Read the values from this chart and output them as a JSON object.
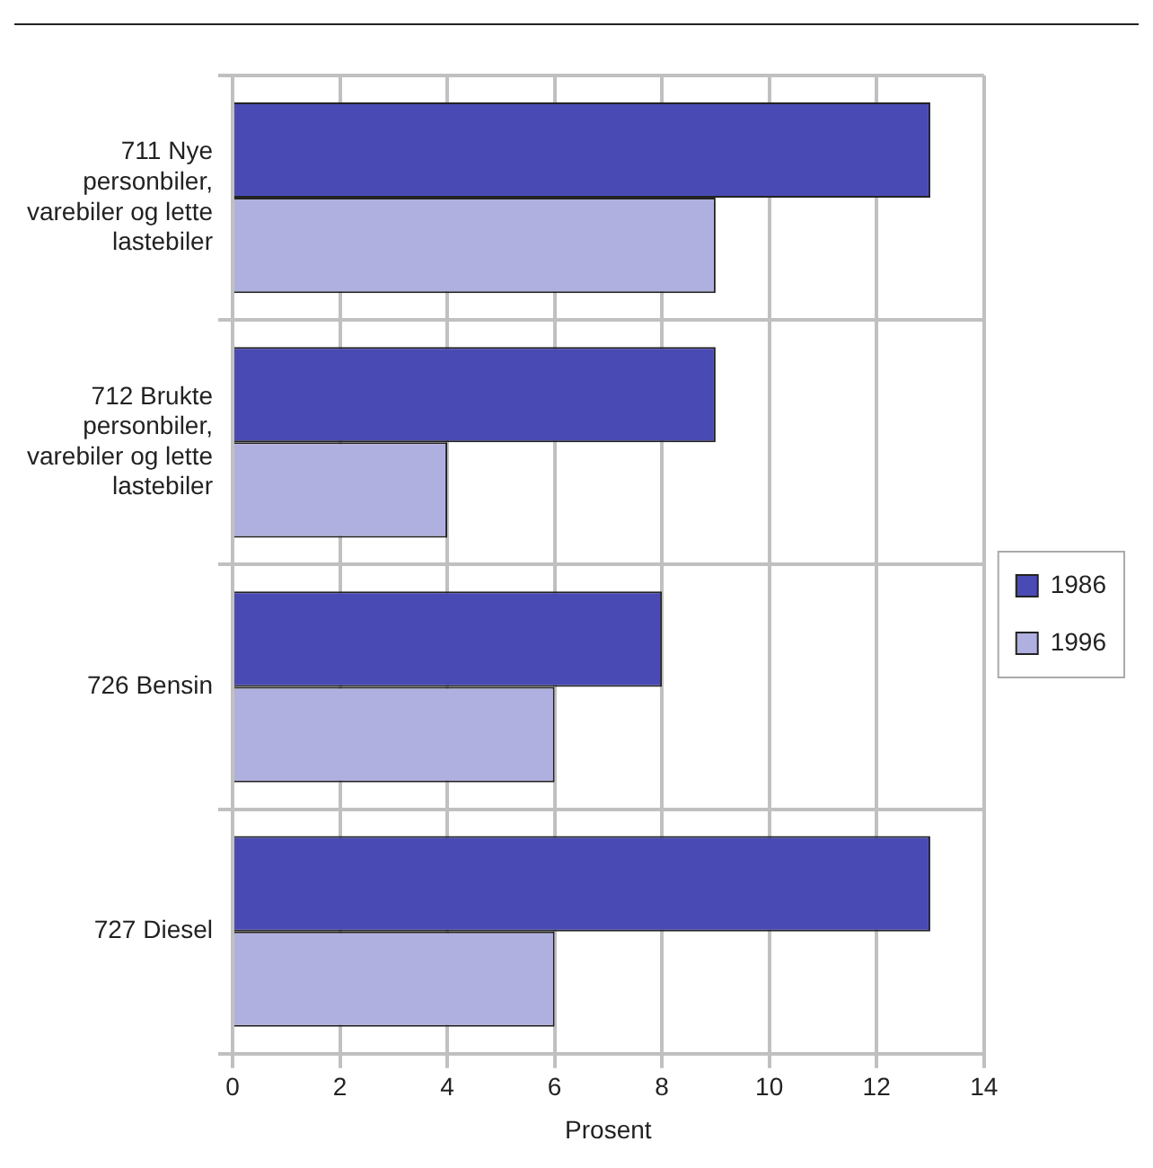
{
  "chart_data": {
    "type": "bar",
    "orientation": "horizontal",
    "xlabel": "Prosent",
    "categories": [
      "711 Nye personbiler, varebiler og lette lastebiler",
      "712 Brukte personbiler, varebiler og lette lastebiler",
      "726 Bensin",
      "727 Diesel"
    ],
    "series": [
      {
        "name": "1986",
        "color": "#4a4ab4",
        "values": [
          13,
          9,
          8,
          13
        ]
      },
      {
        "name": "1996",
        "color": "#b0b0e0",
        "values": [
          9,
          4,
          6,
          6
        ]
      }
    ],
    "xlim": [
      0,
      14
    ],
    "xticks": [
      0,
      2,
      4,
      6,
      8,
      10,
      12,
      14
    ],
    "grid": true,
    "legend": "right"
  }
}
